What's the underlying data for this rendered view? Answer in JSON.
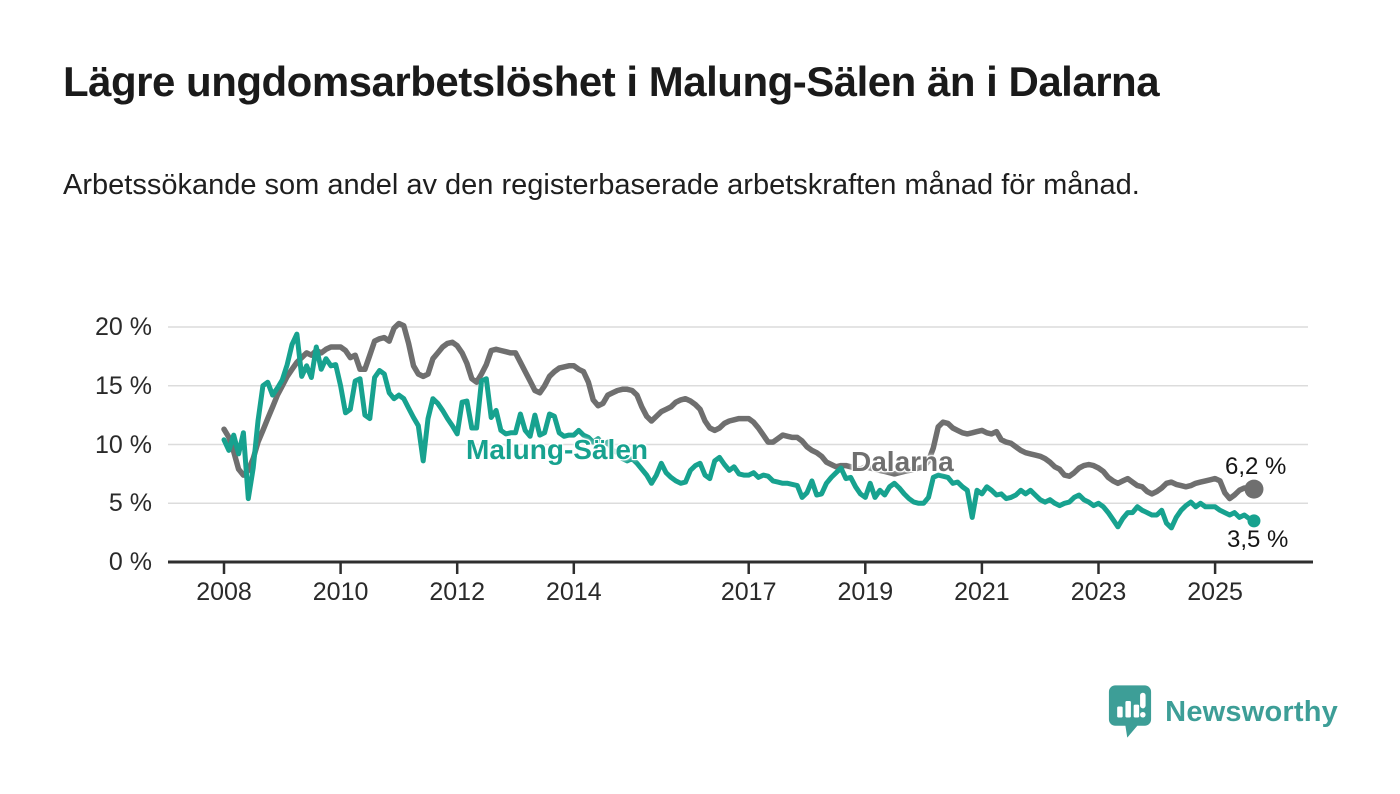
{
  "title": "Lägre ungdomsarbetslöshet i Malung-Sälen än i Dalarna",
  "subtitle": "Arbetssökande som andel av den registerbaserade arbetskraften månad för månad.",
  "branding": {
    "logo_text": "Newsworthy",
    "logo_icon": "bar-chart-speech-bubble-icon"
  },
  "colors": {
    "malung_teal": "#17a28f",
    "dalarna_gray": "#6f6f6f",
    "grid": "#dcdcdc",
    "axis": "#2e2e2e",
    "text": "#1a1a1a",
    "logo_teal": "#3d9e97"
  },
  "chart_data": {
    "type": "line",
    "title": "Lägre ungdomsarbetslöshet i Malung-Sälen än i Dalarna",
    "xlabel": "",
    "ylabel": "",
    "x_start_year": 2008,
    "x_step": "monthly",
    "x_end": "2025-09",
    "x_tick_years": [
      2008,
      2010,
      2012,
      2014,
      2017,
      2019,
      2021,
      2023,
      2025
    ],
    "y_ticks": [
      0,
      5,
      10,
      15,
      20
    ],
    "y_tick_suffix": " %",
    "ylim": [
      0,
      20
    ],
    "grid": "horizontal",
    "legend_position": "inline-labels",
    "series": [
      {
        "name": "Dalarna",
        "color": "#6f6f6f",
        "end_label": "6,2 %",
        "end_value": 6.2,
        "values": [
          11.3,
          10.6,
          9.4,
          7.9,
          7.4,
          7.8,
          8.8,
          10.2,
          11.2,
          12.2,
          13.2,
          14.2,
          15.0,
          15.8,
          16.4,
          17.0,
          17.4,
          17.8,
          17.6,
          18.0,
          17.8,
          18.1,
          18.3,
          18.3,
          18.3,
          18.0,
          17.4,
          17.6,
          16.4,
          16.4,
          17.6,
          18.8,
          19.0,
          19.1,
          18.8,
          19.9,
          20.3,
          20.1,
          18.6,
          16.7,
          16.0,
          15.8,
          16.0,
          17.3,
          17.8,
          18.3,
          18.6,
          18.7,
          18.4,
          17.8,
          16.9,
          15.6,
          15.3,
          16.0,
          16.8,
          18.0,
          18.1,
          18.0,
          17.9,
          17.8,
          17.8,
          17.0,
          16.2,
          15.4,
          14.6,
          14.4,
          15.0,
          15.8,
          16.2,
          16.5,
          16.6,
          16.7,
          16.7,
          16.4,
          16.2,
          15.3,
          13.8,
          13.3,
          13.5,
          14.2,
          14.4,
          14.6,
          14.7,
          14.7,
          14.6,
          14.2,
          13.2,
          12.4,
          12.0,
          12.4,
          12.8,
          13.0,
          13.2,
          13.6,
          13.8,
          13.9,
          13.7,
          13.4,
          13.0,
          12.0,
          11.4,
          11.2,
          11.4,
          11.8,
          12.0,
          12.1,
          12.2,
          12.2,
          12.2,
          11.9,
          11.4,
          10.8,
          10.2,
          10.2,
          10.5,
          10.8,
          10.7,
          10.6,
          10.6,
          10.3,
          9.8,
          9.5,
          9.3,
          9.0,
          8.5,
          8.3,
          8.1,
          8.2,
          8.2,
          8.1,
          8.0,
          7.9,
          8.1,
          8.0,
          7.9,
          7.8,
          7.7,
          7.6,
          7.5,
          7.6,
          7.7,
          7.8,
          7.9,
          8.0,
          8.1,
          8.6,
          9.7,
          11.5,
          11.9,
          11.8,
          11.4,
          11.2,
          11.0,
          10.9,
          11.0,
          11.1,
          11.2,
          11.0,
          10.9,
          11.1,
          10.4,
          10.2,
          10.1,
          9.8,
          9.5,
          9.3,
          9.2,
          9.1,
          9.0,
          8.8,
          8.5,
          8.1,
          7.9,
          7.4,
          7.3,
          7.6,
          8.0,
          8.2,
          8.3,
          8.2,
          8.0,
          7.7,
          7.2,
          6.9,
          6.7,
          6.9,
          7.1,
          6.8,
          6.5,
          6.4,
          6.0,
          5.8,
          6.0,
          6.3,
          6.7,
          6.8,
          6.6,
          6.5,
          6.4,
          6.5,
          6.7,
          6.8,
          6.9,
          7.0,
          7.1,
          6.9,
          5.9,
          5.4,
          5.7,
          6.1,
          6.3,
          6.3,
          6.2
        ]
      },
      {
        "name": "Malung-Sälen",
        "color": "#17a28f",
        "end_label": "3,5 %",
        "end_value": 3.5,
        "values": [
          10.4,
          9.5,
          10.8,
          9.2,
          11.0,
          5.4,
          8.0,
          12.0,
          15.0,
          15.3,
          14.2,
          14.8,
          15.5,
          16.8,
          18.5,
          19.4,
          15.8,
          16.7,
          15.7,
          18.3,
          16.4,
          17.3,
          16.7,
          16.8,
          15.0,
          12.7,
          13.0,
          15.4,
          15.6,
          12.5,
          12.2,
          15.7,
          16.3,
          16.0,
          14.4,
          13.9,
          14.2,
          13.9,
          13.1,
          12.3,
          11.6,
          8.6,
          12.2,
          13.9,
          13.5,
          12.9,
          12.2,
          11.6,
          10.9,
          13.6,
          13.7,
          11.4,
          11.4,
          15.4,
          15.6,
          12.3,
          12.9,
          11.2,
          10.9,
          11.0,
          11.0,
          12.6,
          11.2,
          10.7,
          12.5,
          10.8,
          11.0,
          12.6,
          12.4,
          11.0,
          10.7,
          10.8,
          10.8,
          11.2,
          10.8,
          10.6,
          10.2,
          10.5,
          9.9,
          10.2,
          9.5,
          9.3,
          8.8,
          8.6,
          8.8,
          8.4,
          7.9,
          7.4,
          6.7,
          7.4,
          8.4,
          7.6,
          7.2,
          6.9,
          6.7,
          6.8,
          7.8,
          8.2,
          8.4,
          7.4,
          7.1,
          8.6,
          8.9,
          8.3,
          7.8,
          8.1,
          7.5,
          7.4,
          7.4,
          7.6,
          7.2,
          7.4,
          7.3,
          6.9,
          6.8,
          6.7,
          6.7,
          6.6,
          6.5,
          5.5,
          5.9,
          6.9,
          5.7,
          5.8,
          6.7,
          7.2,
          7.6,
          8.0,
          7.1,
          7.2,
          6.4,
          5.8,
          5.5,
          6.7,
          5.5,
          6.1,
          5.7,
          6.4,
          6.7,
          6.3,
          5.8,
          5.4,
          5.1,
          5.0,
          5.0,
          5.5,
          7.2,
          7.4,
          7.3,
          7.2,
          6.7,
          6.8,
          6.4,
          6.1,
          3.8,
          6.1,
          5.8,
          6.4,
          6.1,
          5.7,
          5.8,
          5.4,
          5.5,
          5.7,
          6.1,
          5.8,
          6.1,
          5.7,
          5.3,
          5.1,
          5.3,
          5.0,
          4.8,
          5.0,
          5.1,
          5.5,
          5.7,
          5.3,
          5.1,
          4.8,
          5.0,
          4.7,
          4.2,
          3.6,
          3.0,
          3.7,
          4.2,
          4.2,
          4.7,
          4.4,
          4.2,
          4.0,
          4.0,
          4.4,
          3.3,
          2.9,
          3.8,
          4.4,
          4.8,
          5.1,
          4.7,
          5.0,
          4.7,
          4.7,
          4.7,
          4.4,
          4.2,
          4.0,
          4.2,
          3.8,
          4.0,
          3.7,
          3.5
        ]
      }
    ]
  }
}
